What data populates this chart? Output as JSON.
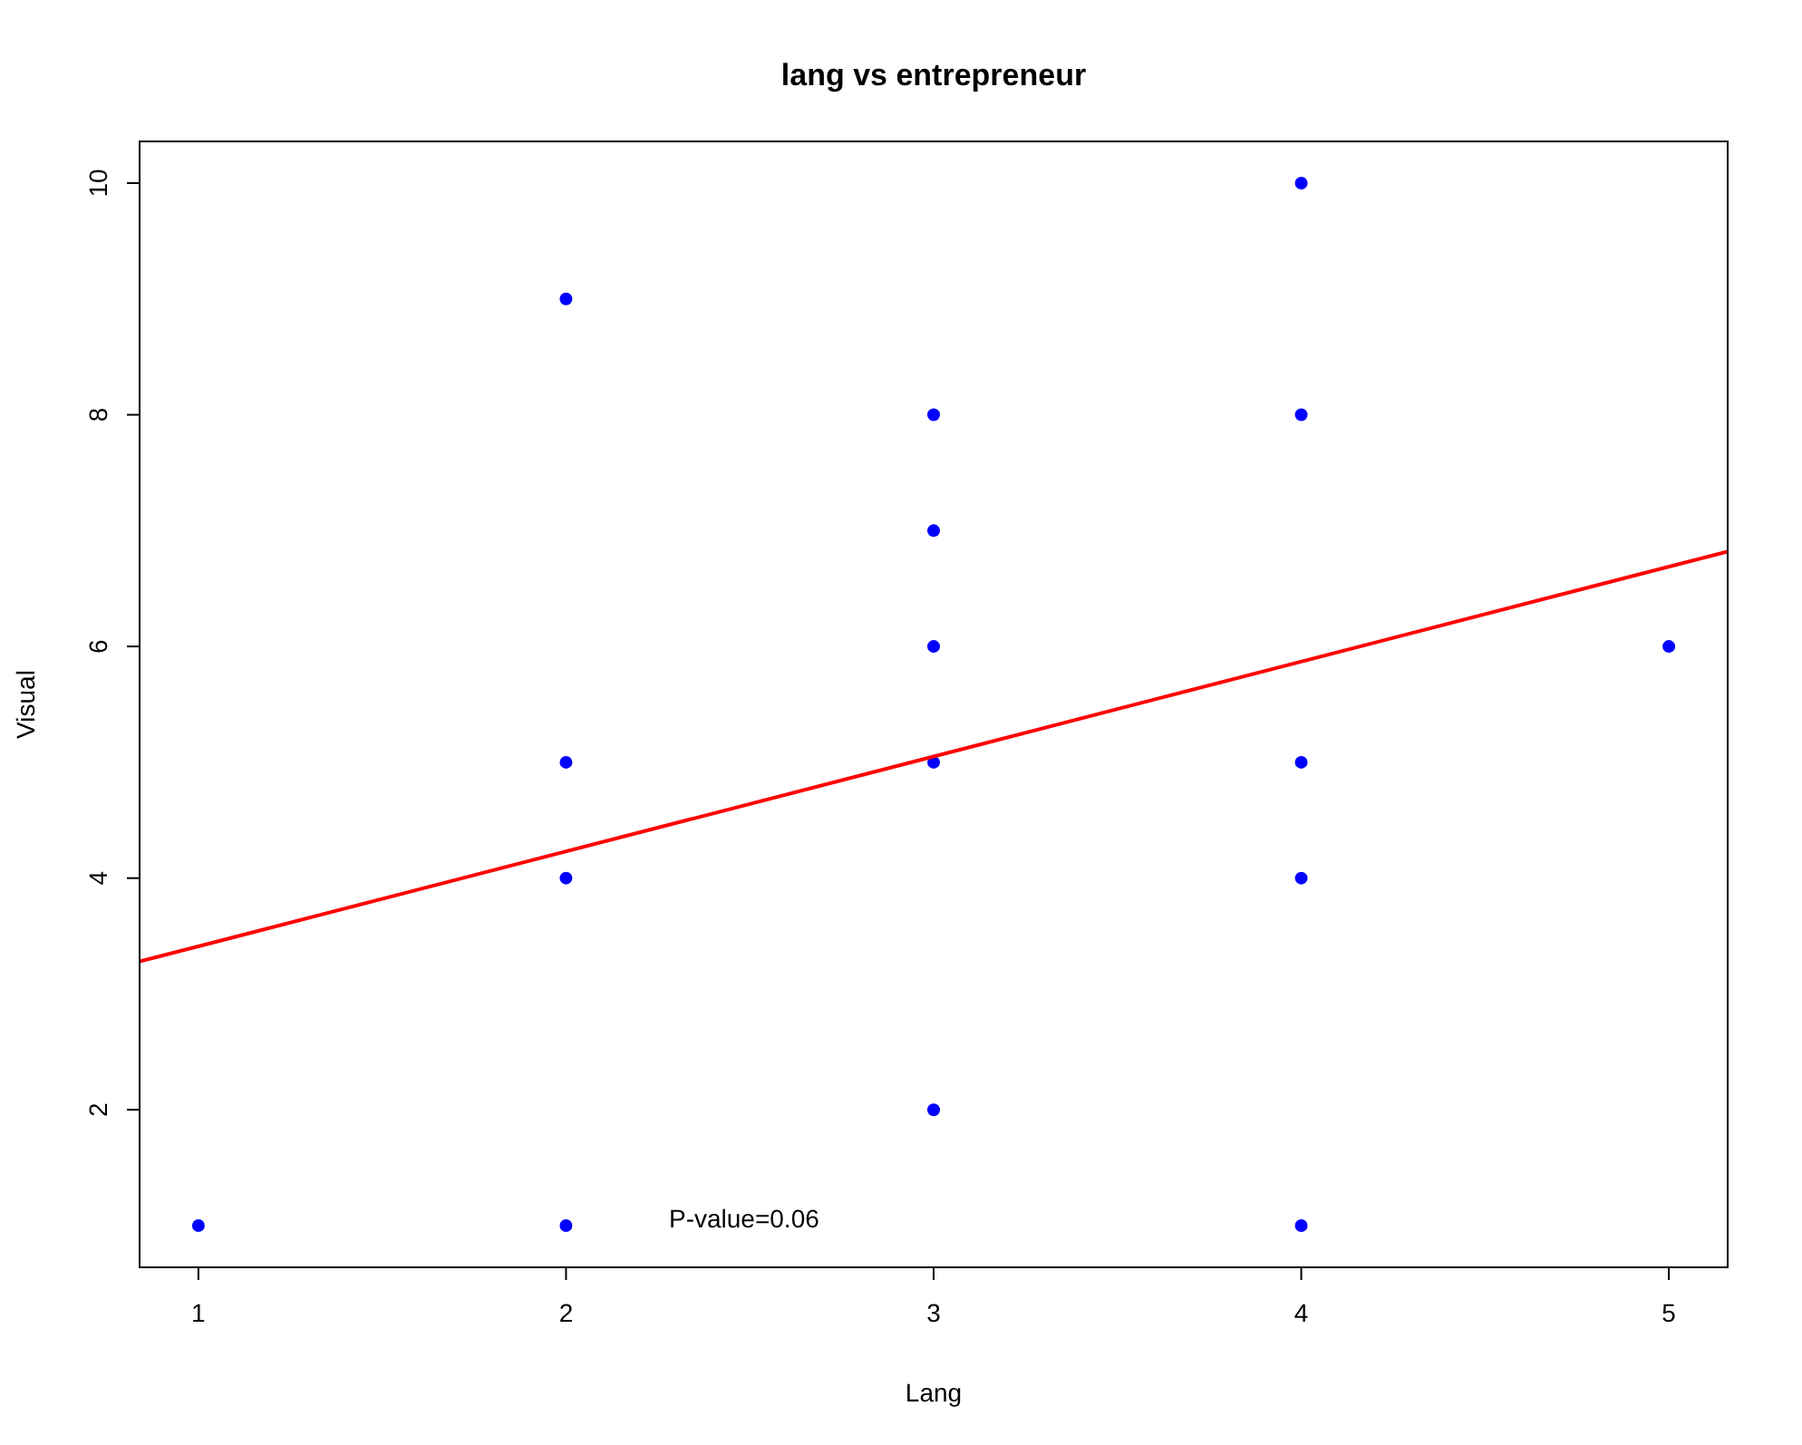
{
  "chart_data": {
    "type": "scatter",
    "title": "lang vs entrepreneur",
    "xlabel": "Lang",
    "ylabel": "Visual",
    "xlim": [
      0.84,
      5.16
    ],
    "ylim": [
      0.64,
      10.36
    ],
    "xticks": [
      1,
      2,
      3,
      4,
      5
    ],
    "yticks": [
      2,
      4,
      6,
      8,
      10
    ],
    "grid": false,
    "series": [
      {
        "marker": "circle",
        "color": "#0000ff",
        "x": [
          1,
          2,
          2,
          2,
          2,
          3,
          3,
          3,
          3,
          3,
          4,
          4,
          4,
          4,
          4,
          5
        ],
        "values": [
          1,
          9,
          5,
          4,
          1,
          8,
          7,
          6,
          5,
          2,
          10,
          8,
          5,
          4,
          1,
          6
        ]
      },
      {
        "type": "line",
        "color": "#ff0000",
        "line_style": "solid",
        "x": [
          0.84,
          5.16
        ],
        "values": [
          3.28,
          6.82
        ]
      }
    ],
    "annotations": [
      "P-value=0.06"
    ]
  }
}
